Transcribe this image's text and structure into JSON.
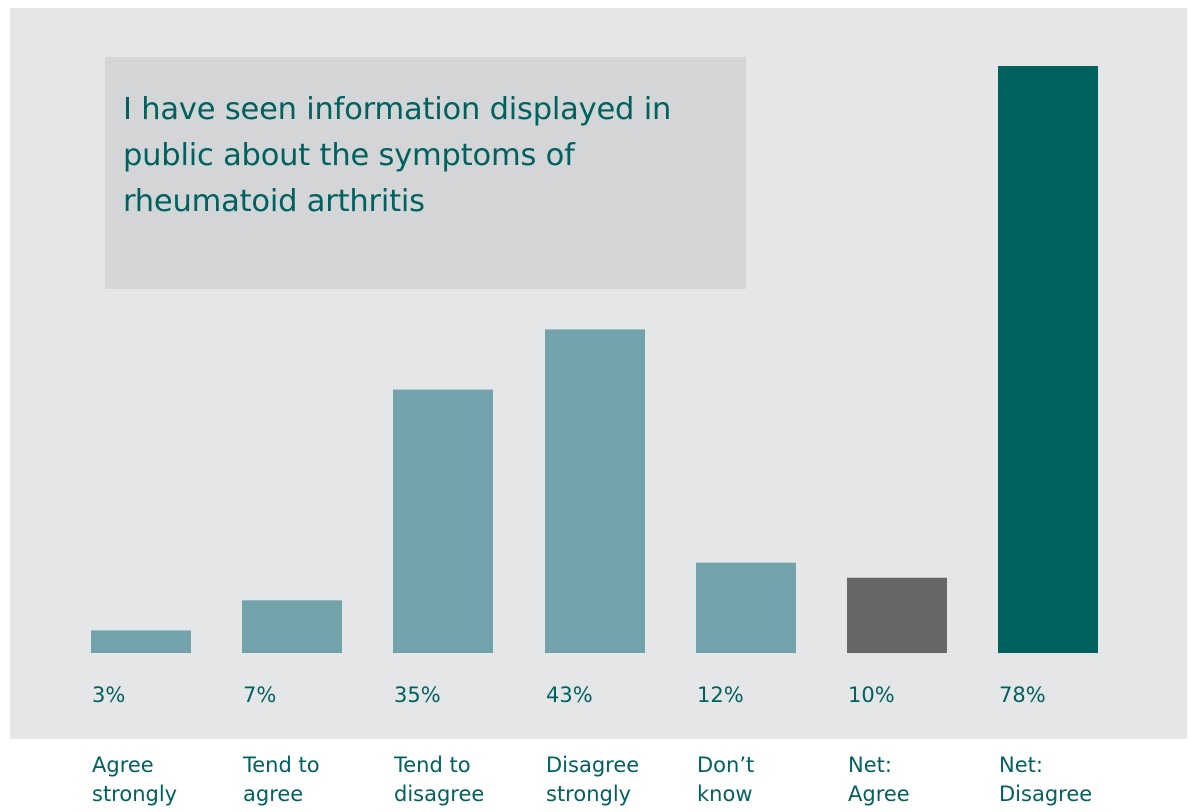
{
  "chart_data": {
    "type": "bar",
    "title": "I have seen information displayed in public about the symptoms of rheumatoid arthritis",
    "categories": [
      [
        "Agree",
        "strongly"
      ],
      [
        "Tend to",
        "agree"
      ],
      [
        "Tend to",
        "disagree"
      ],
      [
        "Disagree",
        "strongly"
      ],
      [
        "Don’t",
        "know"
      ],
      [
        "Net:",
        "Agree"
      ],
      [
        "Net:",
        "Disagree"
      ]
    ],
    "values": [
      3,
      7,
      35,
      43,
      12,
      10,
      78
    ],
    "value_labels": [
      "3%",
      "7%",
      "35%",
      "43%",
      "12%",
      "10%",
      "78%"
    ],
    "unit": "%",
    "ylim": [
      0,
      78
    ],
    "grid": false,
    "legend": "none",
    "colors": [
      "#73a3aa",
      "#73a3aa",
      "#73a3aa",
      "#73a3aa",
      "#73a3aa",
      "#656769",
      "#00615f"
    ]
  },
  "colors": {
    "panel_background": "#e5e6e8",
    "title_box_background": "#d4d5d7",
    "text": "#00615f"
  }
}
